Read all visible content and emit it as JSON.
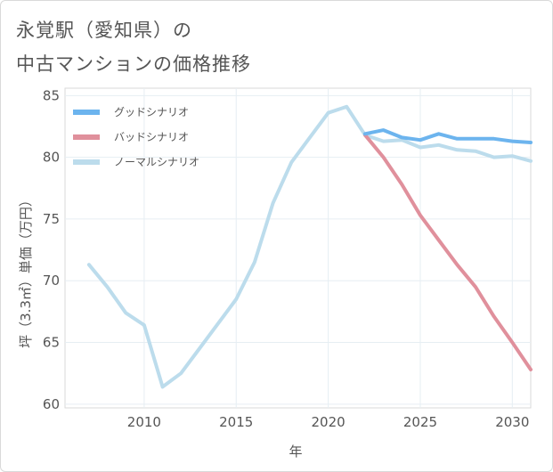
{
  "title": {
    "line1": "永覚駅（愛知県）の",
    "line2": "中古マンションの価格推移"
  },
  "chart_data": {
    "type": "line",
    "xlabel": "年",
    "ylabel": "坪（3.3㎡）単価（万円）",
    "xlim": [
      2005.7,
      2031
    ],
    "ylim": [
      59.7,
      85.6
    ],
    "x_ticks": [
      2010,
      2015,
      2020,
      2025,
      2030
    ],
    "y_ticks": [
      60,
      65,
      70,
      75,
      80,
      85
    ],
    "grid": true,
    "legend_position": "top-left",
    "series": [
      {
        "name": "グッドシナリオ",
        "color": "#6cb4ee",
        "x": [
          2022,
          2023,
          2024,
          2025,
          2026,
          2027,
          2028,
          2029,
          2030,
          2031
        ],
        "y": [
          81.9,
          82.2,
          81.6,
          81.4,
          81.9,
          81.5,
          81.5,
          81.5,
          81.3,
          81.2
        ]
      },
      {
        "name": "バッドシナリオ",
        "color": "#e0909c",
        "x": [
          2022,
          2023,
          2024,
          2025,
          2026,
          2027,
          2028,
          2029,
          2030,
          2031
        ],
        "y": [
          81.8,
          80.0,
          77.8,
          75.3,
          73.3,
          71.3,
          69.5,
          67.1,
          65.0,
          62.8
        ]
      },
      {
        "name": "ノーマルシナリオ",
        "color": "#bcdcec",
        "x": [
          2007,
          2008,
          2009,
          2010,
          2011,
          2012,
          2013,
          2014,
          2015,
          2016,
          2017,
          2018,
          2019,
          2020,
          2021,
          2022,
          2023,
          2024,
          2025,
          2026,
          2027,
          2028,
          2029,
          2030,
          2031
        ],
        "y": [
          71.3,
          69.5,
          67.4,
          66.4,
          61.4,
          62.5,
          64.5,
          66.5,
          68.5,
          71.5,
          76.3,
          79.6,
          81.6,
          83.6,
          84.1,
          81.8,
          81.3,
          81.4,
          80.8,
          81.0,
          80.6,
          80.5,
          80.0,
          80.1,
          79.7
        ]
      }
    ]
  }
}
